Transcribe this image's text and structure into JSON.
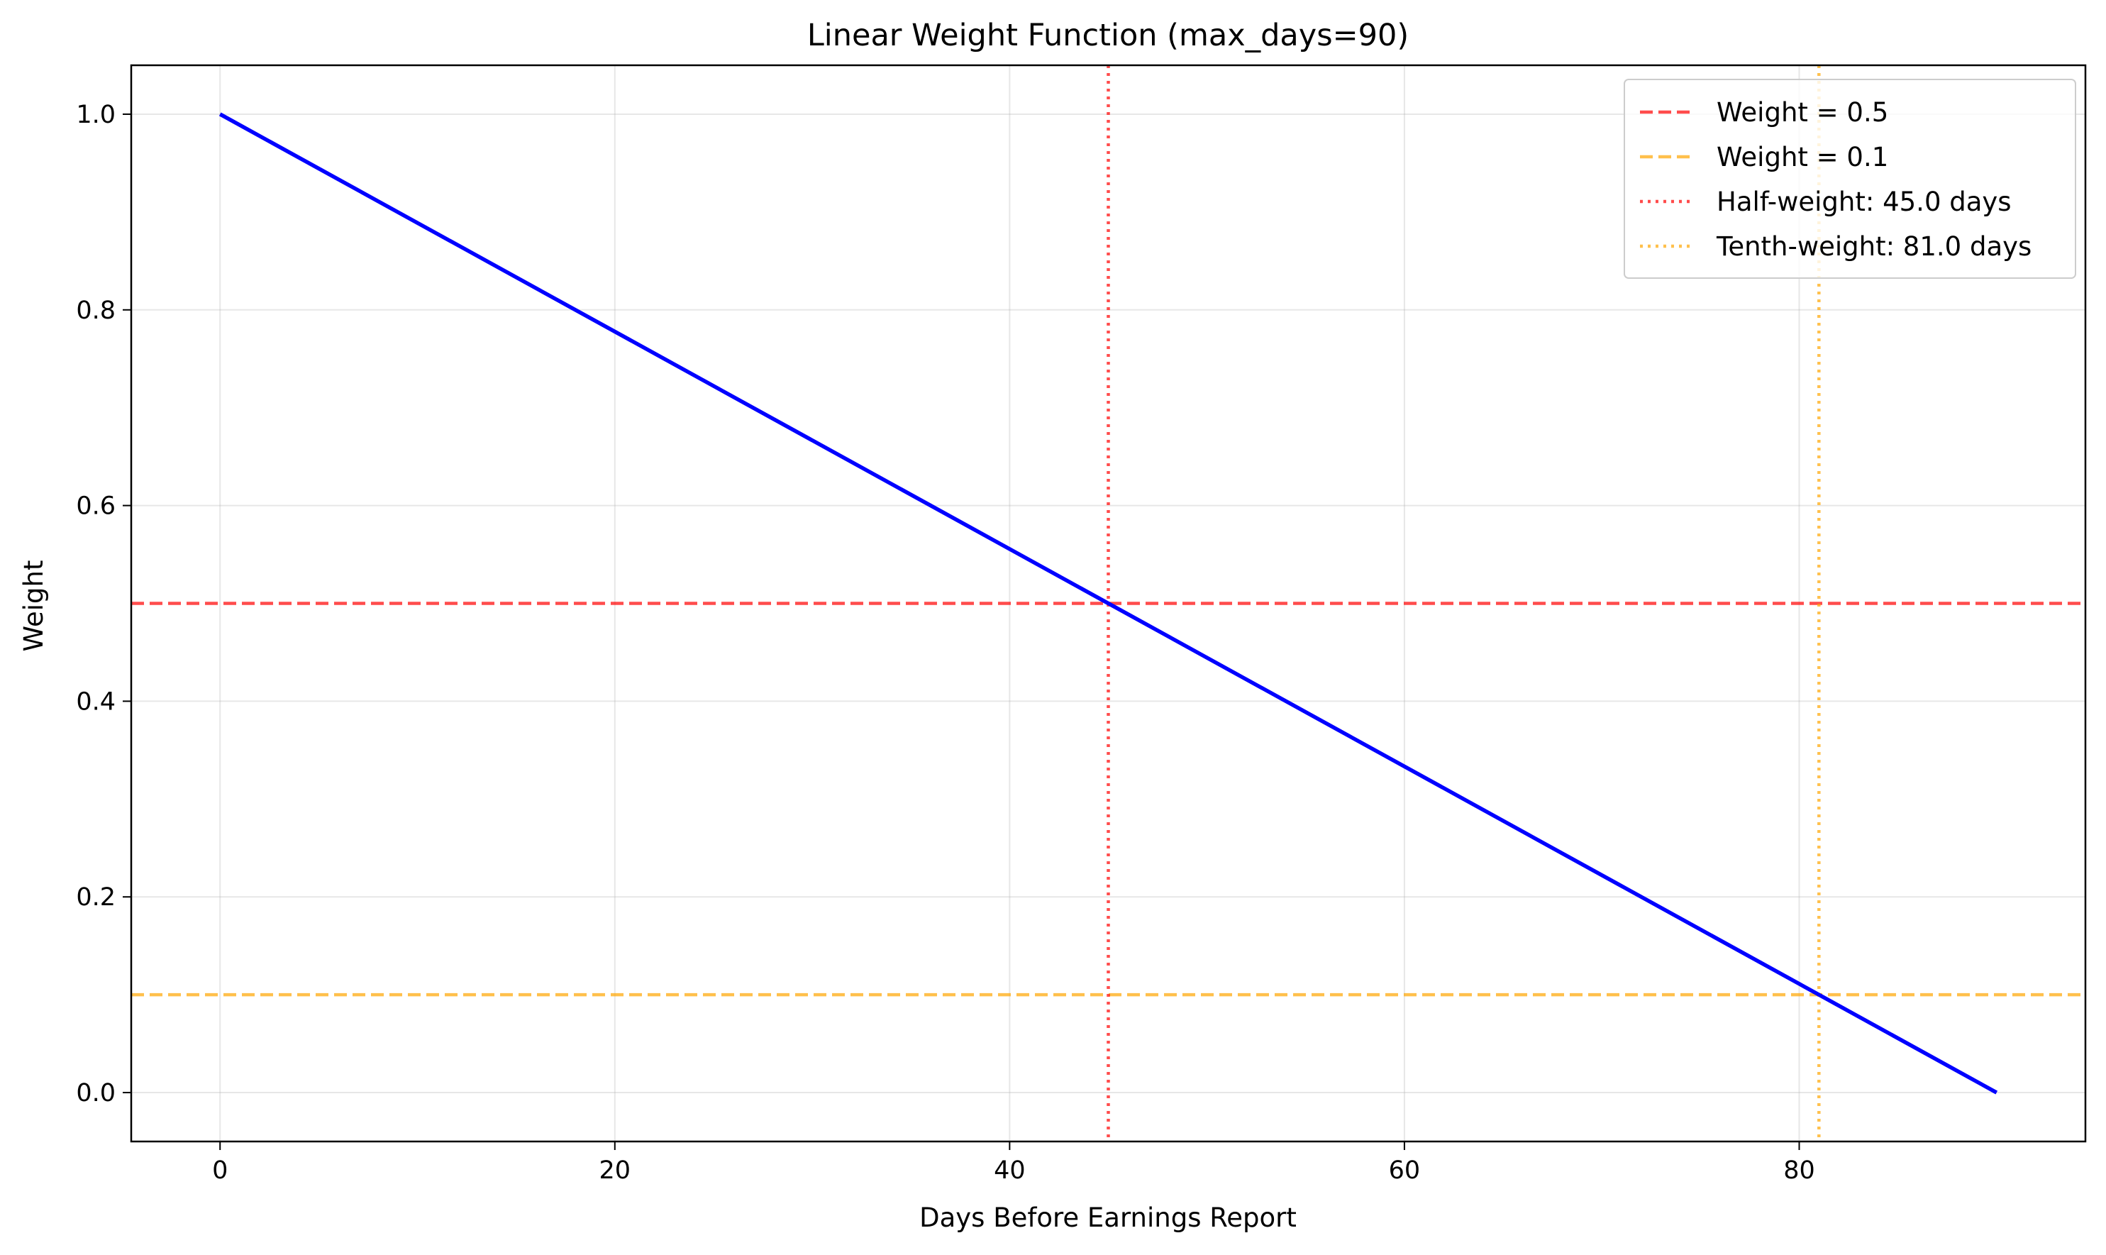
{
  "chart_data": {
    "type": "line",
    "title": "Linear Weight Function (max_days=90)",
    "xlabel": "Days Before Earnings Report",
    "ylabel": "Weight",
    "xlim": [
      -4.5,
      94.5
    ],
    "ylim": [
      -0.05,
      1.05
    ],
    "xticks": [
      0,
      20,
      40,
      60,
      80
    ],
    "yticks": [
      0.0,
      0.2,
      0.4,
      0.6,
      0.8,
      1.0
    ],
    "grid": true,
    "legend_position": "top-right",
    "series": [
      {
        "x": [
          0,
          90
        ],
        "y": [
          1.0,
          0.0
        ],
        "color": "#0000ff",
        "style": "solid"
      }
    ],
    "reference_lines": [
      {
        "orientation": "horizontal",
        "value": 0.5,
        "name": "Weight = 0.5",
        "color": "#ff0000",
        "style": "dashed",
        "opacity": 0.7
      },
      {
        "orientation": "horizontal",
        "value": 0.1,
        "name": "Weight = 0.1",
        "color": "#ffa500",
        "style": "dashed",
        "opacity": 0.7
      },
      {
        "orientation": "vertical",
        "value": 45.0,
        "name": "Half-weight: 45.0 days",
        "color": "#ff0000",
        "style": "dotted",
        "opacity": 0.7
      },
      {
        "orientation": "vertical",
        "value": 81.0,
        "name": "Tenth-weight: 81.0 days",
        "color": "#ffa500",
        "style": "dotted",
        "opacity": 0.7
      }
    ]
  }
}
